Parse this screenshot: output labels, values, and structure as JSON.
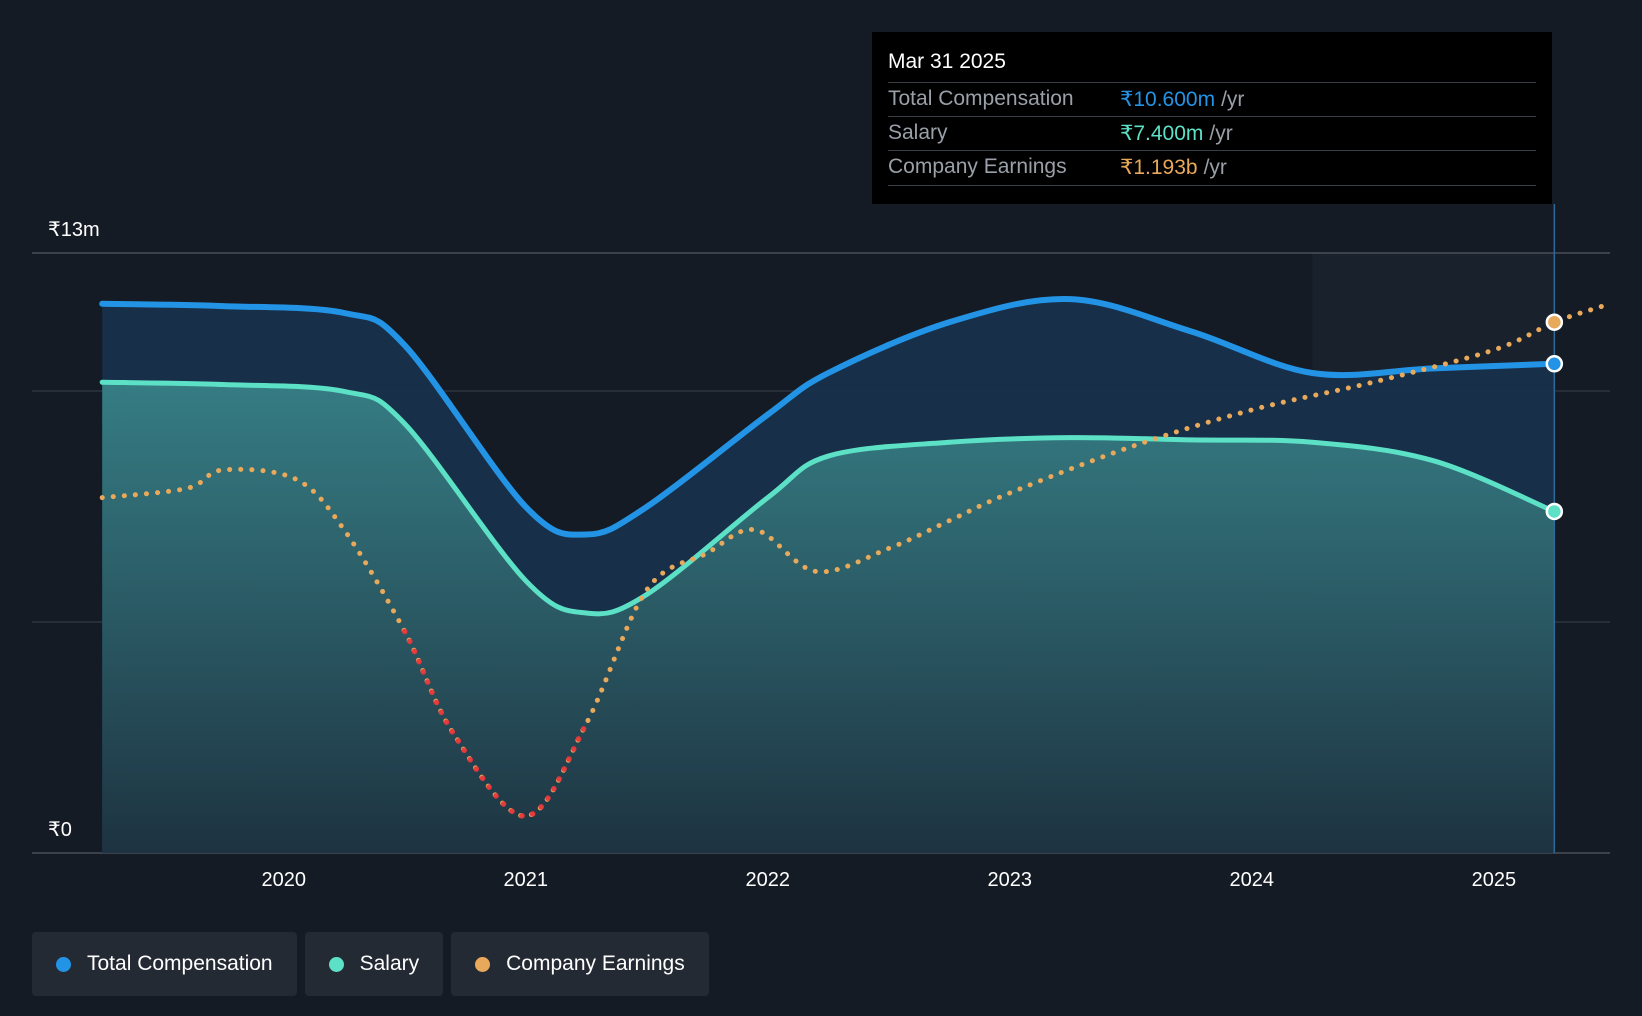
{
  "colors": {
    "total": "#2394e5",
    "salary": "#5ce0c6",
    "earnings": "#e8a95b",
    "negative": "#e5383b"
  },
  "tooltip": {
    "date": "Mar 31 2025",
    "rows": [
      {
        "label": "Total Compensation",
        "value": "₹10.600m",
        "unit": "/yr",
        "color": "#2394e5"
      },
      {
        "label": "Salary",
        "value": "₹7.400m",
        "unit": "/yr",
        "color": "#5ce0c6"
      },
      {
        "label": "Company Earnings",
        "value": "₹1.193b",
        "unit": "/yr",
        "color": "#e8a95b"
      }
    ]
  },
  "legend": [
    {
      "label": "Total Compensation",
      "color": "#2394e5"
    },
    {
      "label": "Salary",
      "color": "#5ce0c6"
    },
    {
      "label": "Company Earnings",
      "color": "#e8a95b"
    }
  ],
  "chart_data": {
    "type": "area",
    "title": "",
    "y_axis": {
      "top_label": "₹13m",
      "bottom_label": "₹0",
      "ylim": [
        0,
        13
      ]
    },
    "x_ticks": [
      "2020",
      "2021",
      "2022",
      "2023",
      "2024",
      "2025"
    ],
    "x_tick_values": [
      2020.0,
      2021.0,
      2022.0,
      2023.0,
      2024.0,
      2025.0
    ],
    "xlim": [
      2018.96,
      2025.48
    ],
    "forecast_start": 2024.25,
    "series": [
      {
        "name": "Total Compensation",
        "unit": "₹m",
        "x": [
          2019.25,
          2019.75,
          2020.25,
          2020.5,
          2021.0,
          2021.25,
          2021.5,
          2022.0,
          2022.25,
          2022.75,
          2023.25,
          2023.75,
          2024.25,
          2024.75,
          2025.25
        ],
        "values": [
          11.9,
          11.85,
          11.7,
          11.0,
          7.5,
          6.9,
          7.5,
          9.5,
          10.4,
          11.5,
          12.0,
          11.3,
          10.4,
          10.5,
          10.6
        ]
      },
      {
        "name": "Salary",
        "unit": "₹m",
        "x": [
          2019.25,
          2019.75,
          2020.25,
          2020.5,
          2021.0,
          2021.25,
          2021.5,
          2022.0,
          2022.25,
          2022.75,
          2023.25,
          2023.75,
          2024.25,
          2024.75,
          2025.25
        ],
        "values": [
          10.2,
          10.15,
          10.0,
          9.3,
          5.9,
          5.2,
          5.6,
          7.7,
          8.6,
          8.9,
          9.0,
          8.95,
          8.9,
          8.5,
          7.4
        ]
      },
      {
        "name": "Company Earnings",
        "unit": "₹ (scaled)",
        "x": [
          2019.25,
          2019.6,
          2019.75,
          2020.05,
          2020.25,
          2020.5,
          2020.7,
          2021.0,
          2021.25,
          2021.5,
          2021.75,
          2021.95,
          2022.2,
          2022.5,
          2022.75,
          2023.0,
          2023.5,
          2024.0,
          2024.5,
          2025.0,
          2025.25,
          2025.45
        ],
        "values": [
          7.7,
          7.9,
          8.3,
          8.1,
          7.0,
          4.8,
          2.6,
          0.8,
          2.8,
          5.7,
          6.5,
          7.0,
          6.1,
          6.6,
          7.2,
          7.8,
          8.8,
          9.6,
          10.2,
          10.9,
          11.5,
          11.85
        ]
      }
    ]
  }
}
